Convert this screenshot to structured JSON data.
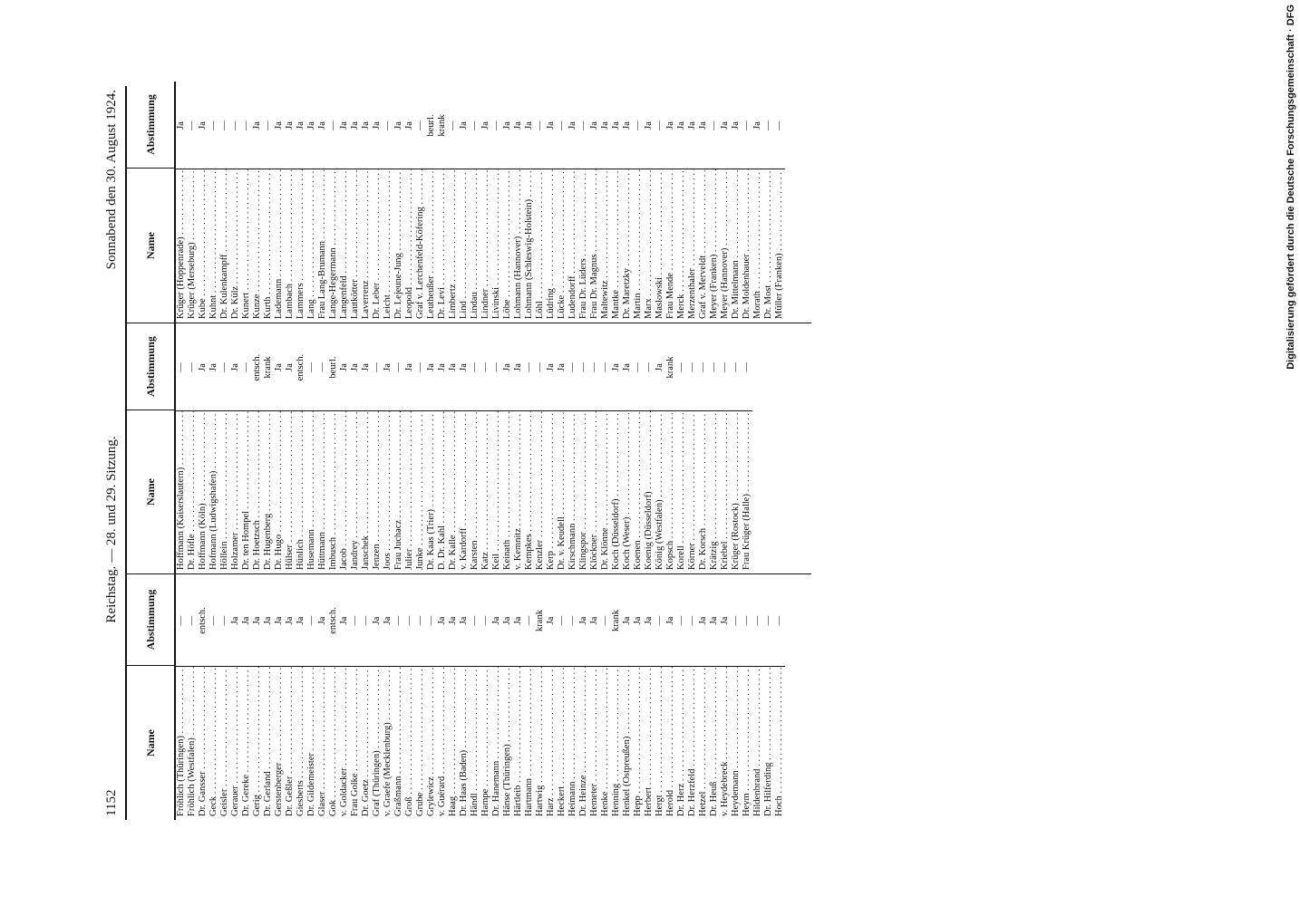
{
  "header": {
    "page": "1152",
    "left": "Reichstag. — 28. und 29. Sitzung.",
    "right": "Sonnabend den 30. August 1924."
  },
  "column_headers": {
    "name": "Name",
    "vote": "Abstimmung"
  },
  "columns": [
    [
      [
        "Fröhlich (Thüringen)",
        "—"
      ],
      [
        "Fröhlich (Westfalen)",
        "—"
      ],
      [
        "Dr. Gansser",
        "entsch."
      ],
      [
        "Geck",
        "—"
      ],
      [
        "Geisler",
        "—"
      ],
      [
        "Gerauer",
        "Ja"
      ],
      [
        "Dr. Gereke",
        "Ja"
      ],
      [
        "Gerig",
        "Ja"
      ],
      [
        "Dr. Gerland",
        "Ja"
      ],
      [
        "Gerstenberger",
        "Ja"
      ],
      [
        "Dr. Geßler",
        "Ja"
      ],
      [
        "Giesberts",
        "Ja"
      ],
      [
        "Dr. Gildemeister",
        "—"
      ],
      [
        "Glaser",
        "Ja"
      ],
      [
        "Gok",
        "entsch."
      ],
      [
        "v. Goldacker",
        "Ja"
      ],
      [
        "Frau Golke",
        "—"
      ],
      [
        "Dr. Goetz",
        "—"
      ],
      [
        "Graf (Thüringen)",
        "Ja"
      ],
      [
        "v. Graefe (Mecklenburg)",
        "Ja"
      ],
      [
        "Graßmann",
        "—"
      ],
      [
        "Groß",
        "—"
      ],
      [
        "Grube",
        "—"
      ],
      [
        "Grylewicz",
        "—"
      ],
      [
        "v. Guérard",
        "Ja"
      ],
      [
        "Haag",
        "Ja"
      ],
      [
        "Dr. Haas (Baden)",
        "Ja"
      ],
      [
        "Händl",
        "—"
      ],
      [
        "Hampe",
        "—"
      ],
      [
        "Dr. Hanemann",
        "Ja"
      ],
      [
        "Hänse (Thüringen)",
        "Ja"
      ],
      [
        "Härtleib",
        "Ja"
      ],
      [
        "Hartmann",
        "—"
      ],
      [
        "Hartwig",
        "krank"
      ],
      [
        "Harz",
        "Ja"
      ],
      [
        "Heckert",
        "—"
      ],
      [
        "Heimann",
        "—"
      ],
      [
        "Dr. Heinze",
        "Ja"
      ],
      [
        "Hemeter",
        "Ja"
      ],
      [
        "Henke",
        "—"
      ],
      [
        "Henning",
        "krank"
      ],
      [
        "Henkel (Ostpreußen)",
        "Ja"
      ],
      [
        "Hepp",
        "Ja"
      ],
      [
        "Herbert",
        "Ja"
      ],
      [
        "Hergt",
        "—"
      ],
      [
        "Herold",
        "Ja"
      ],
      [
        "Dr. Herz",
        "—"
      ],
      [
        "Dr. Herzfeld",
        "—"
      ],
      [
        "Hetzel",
        "Ja"
      ],
      [
        "Dr. Heuß",
        "Ja"
      ],
      [
        "v. Heydebreck",
        "Ja"
      ],
      [
        "Heydemann",
        "—"
      ],
      [
        "Heym",
        "—"
      ],
      [
        "Hildenbrand",
        "—"
      ],
      [
        "Dr. Hilferding",
        "—"
      ],
      [
        "Hoch",
        "—"
      ]
    ],
    [
      [
        "Hoffmann (Kaiserslautern)",
        "—"
      ],
      [
        "Dr. Höfle",
        "—"
      ],
      [
        "Hoffmann (Köln)",
        "Ja"
      ],
      [
        "Hofmann (Ludwigshafen)",
        "Ja"
      ],
      [
        "Höllein",
        "—"
      ],
      [
        "Holzamer",
        "Ja"
      ],
      [
        "Dr. ten Hompel",
        "—"
      ],
      [
        "Dr. Hoetzsch",
        "entsch."
      ],
      [
        "Dr. Hugenberg",
        "krank"
      ],
      [
        "Dr. Hugo",
        "Ja"
      ],
      [
        "Hülser",
        "Ja"
      ],
      [
        "Hünlich",
        "entsch."
      ],
      [
        "Husemann",
        "—"
      ],
      [
        "Hüttmann",
        "—"
      ],
      [
        "Imbusch",
        "beurl."
      ],
      [
        "Jacob",
        "Ja"
      ],
      [
        "Jandrey",
        "Ja"
      ],
      [
        "Janschek",
        "Ja"
      ],
      [
        "Jenzen",
        "—"
      ],
      [
        "Joos",
        "Ja"
      ],
      [
        "Frau Juchacz",
        "—"
      ],
      [
        "Julier",
        "Ja"
      ],
      [
        "Junke",
        "—"
      ],
      [
        "Dr. Kaas (Trier)",
        "Ja"
      ],
      [
        "D. Dr. Kahl",
        "Ja"
      ],
      [
        "Dr. Kalle",
        "Ja"
      ],
      [
        "v. Kardorff",
        "Ja"
      ],
      [
        "Karsten",
        "—"
      ],
      [
        "Katz",
        "—"
      ],
      [
        "Keil",
        "—"
      ],
      [
        "Keinath",
        "Ja"
      ],
      [
        "v. Kemnitz",
        "Ja"
      ],
      [
        "Kempkes",
        "—"
      ],
      [
        "Kenzler",
        "—"
      ],
      [
        "Kerp",
        "Ja"
      ],
      [
        "Dr. v. Keudell",
        "Ja"
      ],
      [
        "Kirschmann",
        "—"
      ],
      [
        "Klingspor",
        "—"
      ],
      [
        "Klöckner",
        "—"
      ],
      [
        "Dr. Klönne",
        "—"
      ],
      [
        "Koch (Düsseldorf)",
        "Ja"
      ],
      [
        "Koch (Weser)",
        "Ja"
      ],
      [
        "Koenen",
        "—"
      ],
      [
        "Koenig (Düsseldorf)",
        "—"
      ],
      [
        "König (Westfalen)",
        "Ja"
      ],
      [
        "Kopsch",
        "krank"
      ],
      [
        "Korell",
        "—"
      ],
      [
        "Körner",
        "—"
      ],
      [
        "Dr. Korsch",
        "—"
      ],
      [
        "Krätzig",
        "—"
      ],
      [
        "Kriebel",
        "—"
      ],
      [
        "Krüger (Rostock)",
        "—"
      ],
      [
        "Frau Krüger (Halle)",
        "—"
      ]
    ],
    [
      [
        "Krüger (Hoppenrade)",
        "Ja"
      ],
      [
        "Krüger (Merseburg)",
        "—"
      ],
      [
        "Kube",
        "Ja"
      ],
      [
        "Kuhnt",
        "—"
      ],
      [
        "Dr. Kulenkampff",
        "—"
      ],
      [
        "Dr. Külz",
        "—"
      ],
      [
        "Kunert",
        "—"
      ],
      [
        "Kunze",
        "Ja"
      ],
      [
        "Kurth",
        "—"
      ],
      [
        "Lademann",
        "Ja"
      ],
      [
        "Lambach",
        "Ja"
      ],
      [
        "Lammers",
        "Ja"
      ],
      [
        "Lang",
        "Ja"
      ],
      [
        "Frau Lang-Brumann",
        "Ja"
      ],
      [
        "Lange-Hegermann",
        "—"
      ],
      [
        "Langenfeld",
        "Ja"
      ],
      [
        "Lautkötter",
        "Ja"
      ],
      [
        "Laverrenz",
        "Ja"
      ],
      [
        "Dr. Leber",
        "Ja"
      ],
      [
        "Leicht",
        "—"
      ],
      [
        "Dr. Lejeune-Jung",
        "Ja"
      ],
      [
        "Leopold",
        "Ja"
      ],
      [
        "Graf v. Lerchenfeld-Köfering",
        "—"
      ],
      [
        "Leutheußer",
        "beurl."
      ],
      [
        "Dr. Levi",
        "krank"
      ],
      [
        "Limbertz",
        "—"
      ],
      [
        "Lind",
        "Ja"
      ],
      [
        "Lindau",
        "—"
      ],
      [
        "Lindner",
        "Ja"
      ],
      [
        "Livinski",
        "—"
      ],
      [
        "Löbe",
        "Ja"
      ],
      [
        "Lohmann (Hannover)",
        "Ja"
      ],
      [
        "Lohmann (Schleswig-Holstein)",
        "Ja"
      ],
      [
        "Löhl",
        "—"
      ],
      [
        "Lüdring",
        "Ja"
      ],
      [
        "Lücke",
        "—"
      ],
      [
        "Ludendorff",
        "Ja"
      ],
      [
        "Frau Dr. Lüders",
        "—"
      ],
      [
        "Frau Dr. Magnus",
        "Ja"
      ],
      [
        "Maltewitz",
        "Ja"
      ],
      [
        "Mantke",
        "Ja"
      ],
      [
        "Dr. Maretzky",
        "Ja"
      ],
      [
        "Martin",
        "—"
      ],
      [
        "Marx",
        "Ja"
      ],
      [
        "Maslowski",
        "—"
      ],
      [
        "Frau Mende",
        "Ja"
      ],
      [
        "Merck",
        "Ja"
      ],
      [
        "Merzenthaler",
        "Ja"
      ],
      [
        "Graf v. Merveldt",
        "Ja"
      ],
      [
        "Meyer (Franken)",
        "—"
      ],
      [
        "Meyer (Hannover)",
        "Ja"
      ],
      [
        "Dr. Mittelmann",
        "Ja"
      ],
      [
        "Dr. Moldenhauer",
        "—"
      ],
      [
        "Morath",
        "Ja"
      ],
      [
        "Dr. Most",
        "—"
      ],
      [
        "Müller (Franken)",
        "—"
      ]
    ]
  ],
  "credit": "Digitalisierung gefördert durch die Deutsche Forschungsgemeinschaft · DFG"
}
